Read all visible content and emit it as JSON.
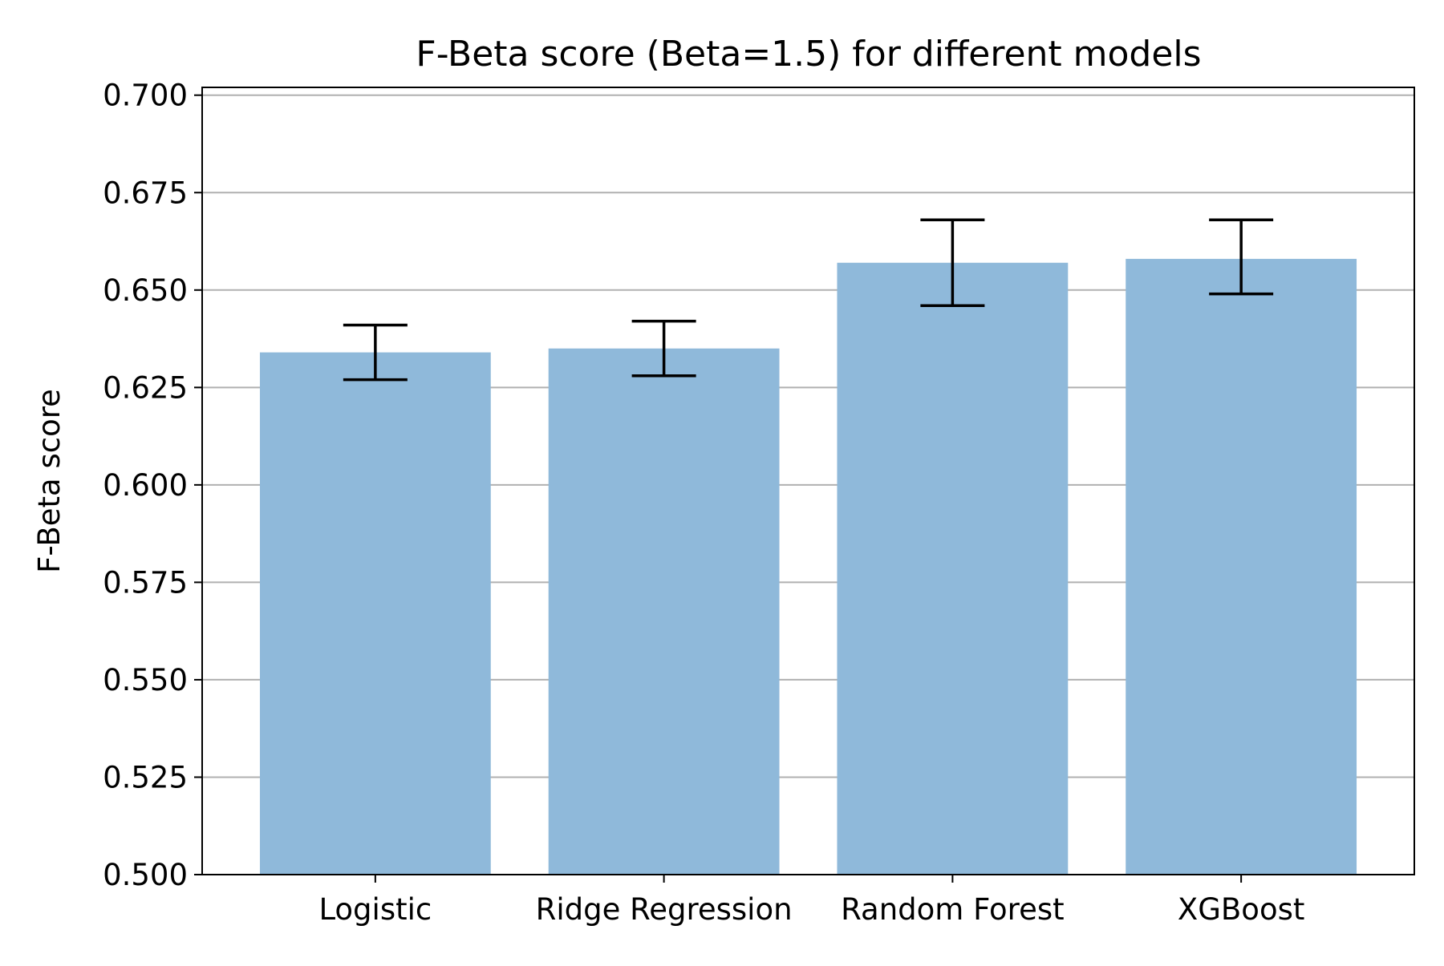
{
  "chart_data": {
    "type": "bar",
    "title": "F-Beta score (Beta=1.5) for different models",
    "xlabel": "",
    "ylabel": "F-Beta score",
    "categories": [
      "Logistic",
      "Ridge Regression",
      "Random Forest",
      "XGBoost"
    ],
    "values": [
      0.634,
      0.635,
      0.657,
      0.658
    ],
    "error_low": [
      0.627,
      0.628,
      0.646,
      0.649
    ],
    "error_high": [
      0.641,
      0.642,
      0.668,
      0.668
    ],
    "ylim": [
      0.5,
      0.7
    ],
    "yticks": [
      "0.500",
      "0.525",
      "0.550",
      "0.575",
      "0.600",
      "0.625",
      "0.650",
      "0.675",
      "0.700"
    ],
    "grid": "y-axis",
    "colors": {
      "bar": "#8fb9da",
      "grid": "#b0b0b0",
      "errorbar": "#000000",
      "axes": "#000000"
    }
  }
}
